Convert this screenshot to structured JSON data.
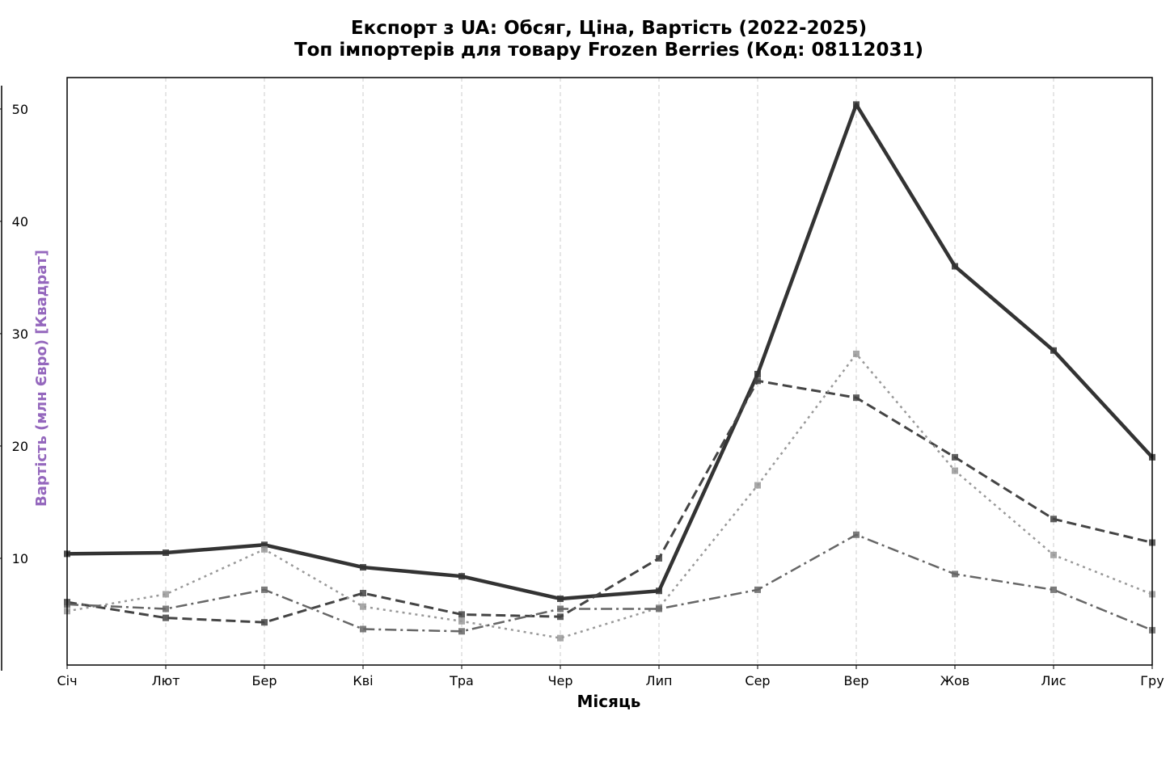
{
  "chart_data": {
    "type": "line",
    "title_line1": "Експорт з UA: Обсяг, Ціна, Вартість (2022-2025)",
    "title_line2": "Топ імпортерів для товару Frozen Berries (Код: 08112031)",
    "xlabel": "Місяць",
    "ylabel": "Вартість (млн Євро) [Квадрат]",
    "ylabel_color": "#9467bd",
    "categories": [
      "Січ",
      "Лют",
      "Бер",
      "Кві",
      "Тра",
      "Чер",
      "Лип",
      "Сер",
      "Вер",
      "Жов",
      "Лис",
      "Гру"
    ],
    "yticks": [
      10,
      20,
      30,
      40,
      50
    ],
    "ylim": [
      0.5,
      52.8
    ],
    "grid": "x-dashed",
    "series": [
      {
        "color": "#333333",
        "style": "solid",
        "values": [
          10.4,
          10.5,
          11.2,
          9.2,
          8.4,
          6.4,
          7.1,
          26.4,
          50.4,
          36.0,
          28.5,
          19.0
        ]
      },
      {
        "color": "#444444",
        "style": "dashed",
        "values": [
          6.1,
          4.7,
          4.3,
          6.9,
          5.0,
          4.8,
          10.0,
          25.8,
          24.3,
          19.0,
          13.5,
          11.4
        ]
      },
      {
        "color": "#999999",
        "style": "dotted",
        "values": [
          5.3,
          6.8,
          10.8,
          5.7,
          4.4,
          2.9,
          5.6,
          16.5,
          28.2,
          17.8,
          10.3,
          6.8
        ]
      },
      {
        "color": "#666666",
        "style": "dashdot",
        "values": [
          5.9,
          5.5,
          7.2,
          3.7,
          3.5,
          5.5,
          5.5,
          7.2,
          12.1,
          8.6,
          7.2,
          3.6
        ]
      }
    ]
  }
}
